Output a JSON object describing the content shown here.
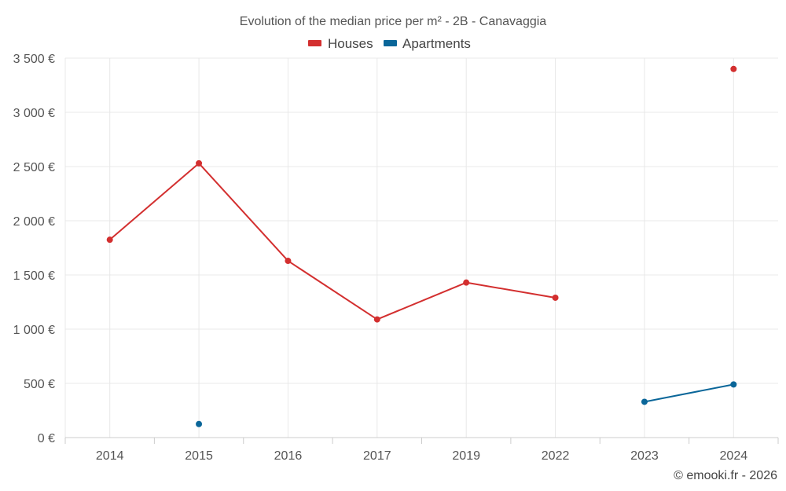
{
  "chart_data": {
    "type": "line",
    "title": "Evolution of the median price per m² - 2B - Canavaggia",
    "categories": [
      "2014",
      "2015",
      "2016",
      "2017",
      "2019",
      "2022",
      "2023",
      "2024"
    ],
    "y_ticks": [
      "0 €",
      "500 €",
      "1 000 €",
      "1 500 €",
      "2 000 €",
      "2 500 €",
      "3 000 €",
      "3 500 €"
    ],
    "ylim": [
      0,
      3500
    ],
    "grid": true,
    "legend_position": "top-center",
    "series": [
      {
        "name": "Houses",
        "color": "#d32f2f",
        "values": [
          1825,
          2530,
          1630,
          1090,
          1430,
          1290,
          null,
          3400
        ]
      },
      {
        "name": "Apartments",
        "color": "#0a6699",
        "values": [
          null,
          125,
          null,
          null,
          null,
          null,
          330,
          490
        ]
      }
    ]
  },
  "credit": "© emooki.fr - 2026"
}
